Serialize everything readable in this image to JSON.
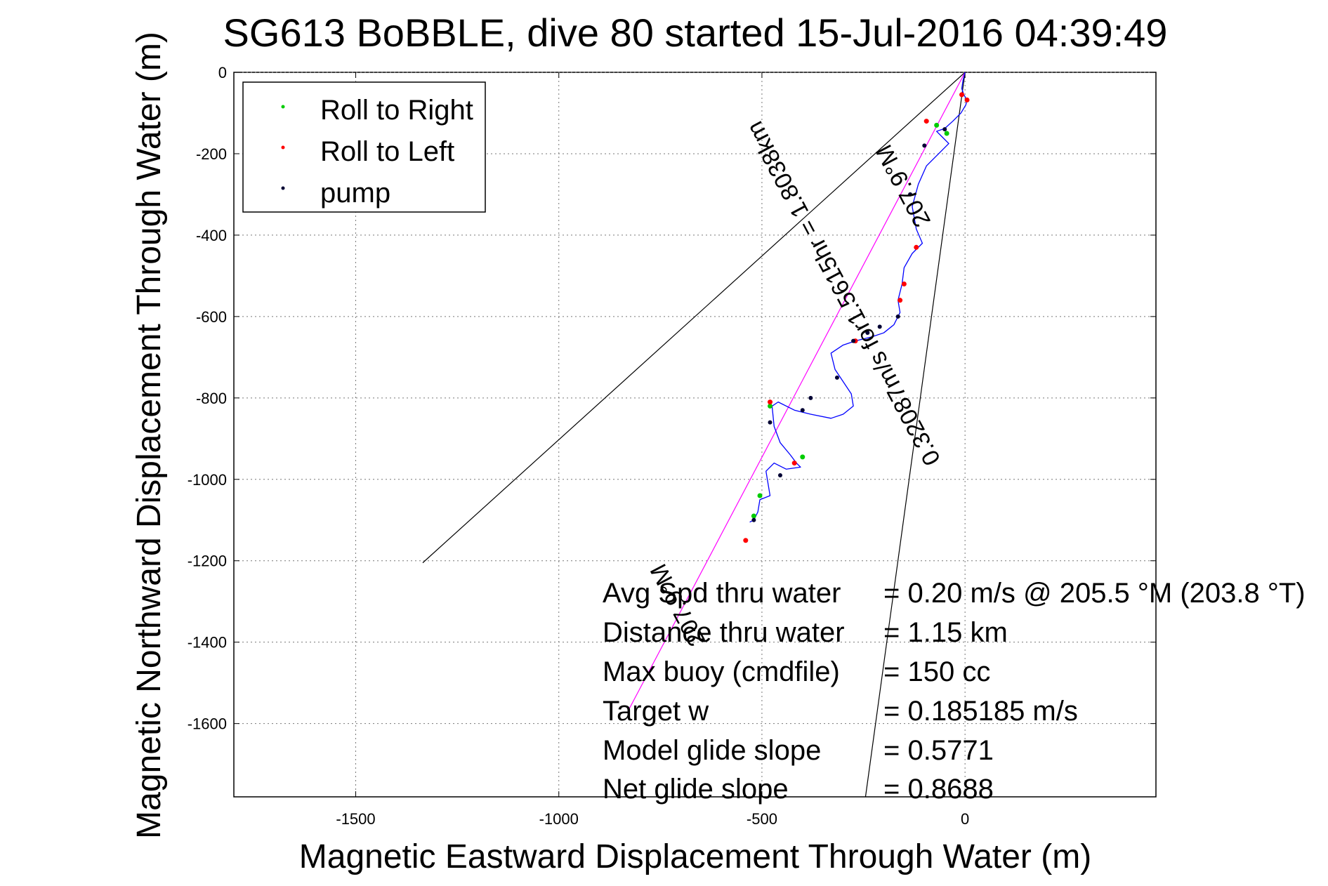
{
  "chart_data": {
    "type": "line",
    "title": "SG613 BoBBLE, dive 80 started 15-Jul-2016 04:39:49",
    "xlabel": "Magnetic Eastward Displacement Through Water (m)",
    "ylabel": "Magnetic Northward Displacement Through Water (m)",
    "xlim": [
      -1800,
      470
    ],
    "ylim": [
      -1780,
      0
    ],
    "xticks": [
      -1500,
      -1000,
      -500,
      0
    ],
    "yticks": [
      0,
      -200,
      -400,
      -600,
      -800,
      -1000,
      -1200,
      -1400,
      -1600
    ],
    "grid": true,
    "legend": {
      "placement": "top-left",
      "entries": [
        {
          "label": "Roll to Right",
          "color": "#00cc00"
        },
        {
          "label": "Roll to Left",
          "color": "#ff0000"
        },
        {
          "label": "pump",
          "color": "#000033"
        }
      ]
    },
    "track": {
      "name": "glider track",
      "color": "#0000ff",
      "x": [
        0,
        -5,
        -8,
        -3,
        5,
        2,
        -10,
        -30,
        -50,
        -70,
        -55,
        -40,
        -60,
        -95,
        -115,
        -130,
        -120,
        -105,
        -130,
        -150,
        -155,
        -165,
        -160,
        -175,
        -200,
        -230,
        -270,
        -300,
        -330,
        -320,
        -300,
        -280,
        -275,
        -300,
        -330,
        -380,
        -420,
        -460,
        -475,
        -470,
        -455,
        -430,
        -415,
        -405,
        -440,
        -470,
        -490,
        -480,
        -505,
        -510,
        -520,
        -530
      ],
      "y": [
        0,
        -20,
        -40,
        -55,
        -68,
        -80,
        -100,
        -120,
        -138,
        -145,
        -160,
        -175,
        -195,
        -230,
        -275,
        -330,
        -385,
        -420,
        -445,
        -480,
        -520,
        -560,
        -590,
        -620,
        -640,
        -650,
        -660,
        -670,
        -690,
        -730,
        -760,
        -790,
        -820,
        -840,
        -850,
        -840,
        -830,
        -810,
        -820,
        -870,
        -910,
        -940,
        -960,
        -970,
        -975,
        -960,
        -980,
        -1040,
        -1050,
        -1080,
        -1100,
        -1105
      ]
    },
    "roll_right_points": {
      "x": [
        -70,
        -45,
        -400,
        -480,
        -505,
        -520
      ],
      "y": [
        -130,
        -150,
        -945,
        -820,
        -1040,
        -1090
      ]
    },
    "roll_left_points": {
      "x": [
        -8,
        5,
        -95,
        -120,
        -150,
        -160,
        -270,
        -420,
        -480,
        -540
      ],
      "y": [
        -55,
        -68,
        -120,
        -430,
        -520,
        -560,
        -660,
        -960,
        -810,
        -1150
      ]
    },
    "pump_points": {
      "x": [
        -50,
        -100,
        -135,
        -165,
        -210,
        -240,
        -275,
        -315,
        -380,
        -400,
        -455,
        -480,
        -520
      ],
      "y": [
        -140,
        -180,
        -300,
        -600,
        -625,
        -640,
        -660,
        -750,
        -800,
        -830,
        -990,
        -860,
        -1100
      ]
    },
    "reference_lines": [
      {
        "x": [
          0,
          -1335
        ],
        "y": [
          0,
          -1205
        ],
        "color": "#000000"
      },
      {
        "x": [
          0,
          -245
        ],
        "y": [
          0,
          -1780
        ],
        "color": "#000000"
      },
      {
        "x": [
          0,
          -830
        ],
        "y": [
          0,
          -1570
        ],
        "color": "#ff00ff"
      }
    ],
    "line_annotations": [
      {
        "text": "0.32087m/s for1.5615hr = 1.8038km",
        "x": -282,
        "y": -534,
        "angle_deg": -62
      },
      {
        "text": "207.9°M",
        "x": -135,
        "y": -270,
        "angle_deg": -62
      },
      {
        "text": "207.9°M",
        "x": -690,
        "y": -1300,
        "angle_deg": -62
      }
    ],
    "stats": [
      {
        "label": "Avg Spd thru water",
        "value": "=  0.20 m/s @ 205.5 °M (203.8 °T)"
      },
      {
        "label": "Distance thru water",
        "value": "=  1.15 km"
      },
      {
        "label": "Max buoy (cmdfile)",
        "value": "= 150 cc"
      },
      {
        "label": "Target w",
        "value": "= 0.185185 m/s"
      },
      {
        "label": "Model glide slope",
        "value": "= 0.5771"
      },
      {
        "label": "Net glide slope",
        "value": "= 0.8688"
      }
    ]
  }
}
